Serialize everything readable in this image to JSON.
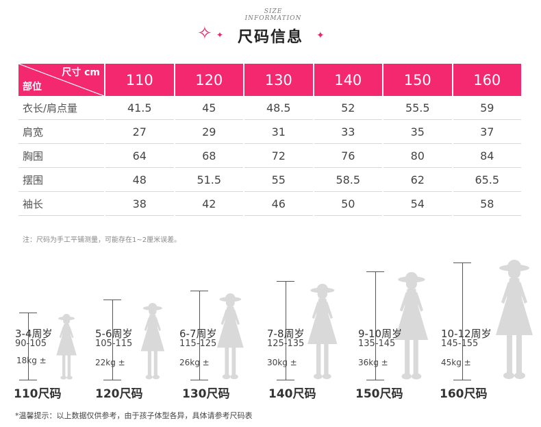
{
  "header": {
    "subtitle": "SIZE INFORMATION",
    "title": "尺码信息"
  },
  "table": {
    "corner_top": "尺寸 cm",
    "corner_bottom": "部位",
    "sizes": [
      "110",
      "120",
      "130",
      "140",
      "150",
      "160"
    ],
    "rows": [
      {
        "label": "衣长/肩点量",
        "values": [
          "41.5",
          "45",
          "48.5",
          "52",
          "55.5",
          "59"
        ]
      },
      {
        "label": "肩宽",
        "values": [
          "27",
          "29",
          "31",
          "33",
          "35",
          "37"
        ]
      },
      {
        "label": "胸围",
        "values": [
          "64",
          "68",
          "72",
          "76",
          "80",
          "84"
        ]
      },
      {
        "label": "摆围",
        "values": [
          "48",
          "51.5",
          "55",
          "58.5",
          "62",
          "65.5"
        ]
      },
      {
        "label": "袖长",
        "values": [
          "38",
          "42",
          "46",
          "50",
          "54",
          "58"
        ]
      }
    ]
  },
  "note": "注：尺码为手工平铺测量，可能存在1~2厘米误差。",
  "figures": [
    {
      "age": "3-4周岁",
      "height": "90-105",
      "weight": "18kg ±",
      "size": "110尺码",
      "scale": 0.55
    },
    {
      "age": "5-6周岁",
      "height": "105-115",
      "weight": "22kg ±",
      "size": "120尺码",
      "scale": 0.64
    },
    {
      "age": "6-7周岁",
      "height": "115-125",
      "weight": "26kg ±",
      "size": "130尺码",
      "scale": 0.72
    },
    {
      "age": "7-8周岁",
      "height": "125-135",
      "weight": "30kg ±",
      "size": "140尺码",
      "scale": 0.8
    },
    {
      "age": "9-10周岁",
      "height": "135-145",
      "weight": "36kg ±",
      "size": "150尺码",
      "scale": 0.9
    },
    {
      "age": "10-12周岁",
      "height": "145-155",
      "weight": "45kg ±",
      "size": "160尺码",
      "scale": 1.0
    }
  ],
  "footer": "*温馨提示：以上数据仅供参考，由于孩子体型各异，具体请参考尺码表",
  "colors": {
    "accent": "#f4286f",
    "silhouette": "#d9d9d9"
  }
}
